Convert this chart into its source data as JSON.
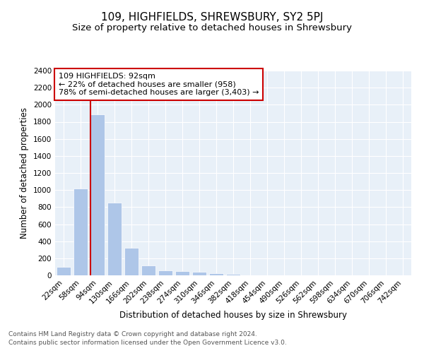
{
  "title1": "109, HIGHFIELDS, SHREWSBURY, SY2 5PJ",
  "title2": "Size of property relative to detached houses in Shrewsbury",
  "xlabel": "Distribution of detached houses by size in Shrewsbury",
  "ylabel": "Number of detached properties",
  "categories": [
    "22sqm",
    "58sqm",
    "94sqm",
    "130sqm",
    "166sqm",
    "202sqm",
    "238sqm",
    "274sqm",
    "310sqm",
    "346sqm",
    "382sqm",
    "418sqm",
    "454sqm",
    "490sqm",
    "526sqm",
    "562sqm",
    "598sqm",
    "634sqm",
    "670sqm",
    "706sqm",
    "742sqm"
  ],
  "values": [
    100,
    1020,
    1890,
    855,
    325,
    120,
    55,
    48,
    40,
    25,
    20,
    0,
    0,
    0,
    0,
    0,
    0,
    0,
    0,
    0,
    0
  ],
  "vline_index": 2,
  "vline_color": "#cc0000",
  "annotation_box_text": "109 HIGHFIELDS: 92sqm\n← 22% of detached houses are smaller (958)\n78% of semi-detached houses are larger (3,403) →",
  "ylim": [
    0,
    2400
  ],
  "yticks": [
    0,
    200,
    400,
    600,
    800,
    1000,
    1200,
    1400,
    1600,
    1800,
    2000,
    2200,
    2400
  ],
  "footer1": "Contains HM Land Registry data © Crown copyright and database right 2024.",
  "footer2": "Contains public sector information licensed under the Open Government Licence v3.0.",
  "bg_color": "#e8f0f8",
  "bar_color": "#aec6e8",
  "bar_edge_color": "white",
  "grid_color": "white",
  "title1_fontsize": 11,
  "title2_fontsize": 9.5,
  "xlabel_fontsize": 8.5,
  "ylabel_fontsize": 8.5,
  "tick_fontsize": 7.5,
  "annotation_fontsize": 8,
  "footer_fontsize": 6.5
}
